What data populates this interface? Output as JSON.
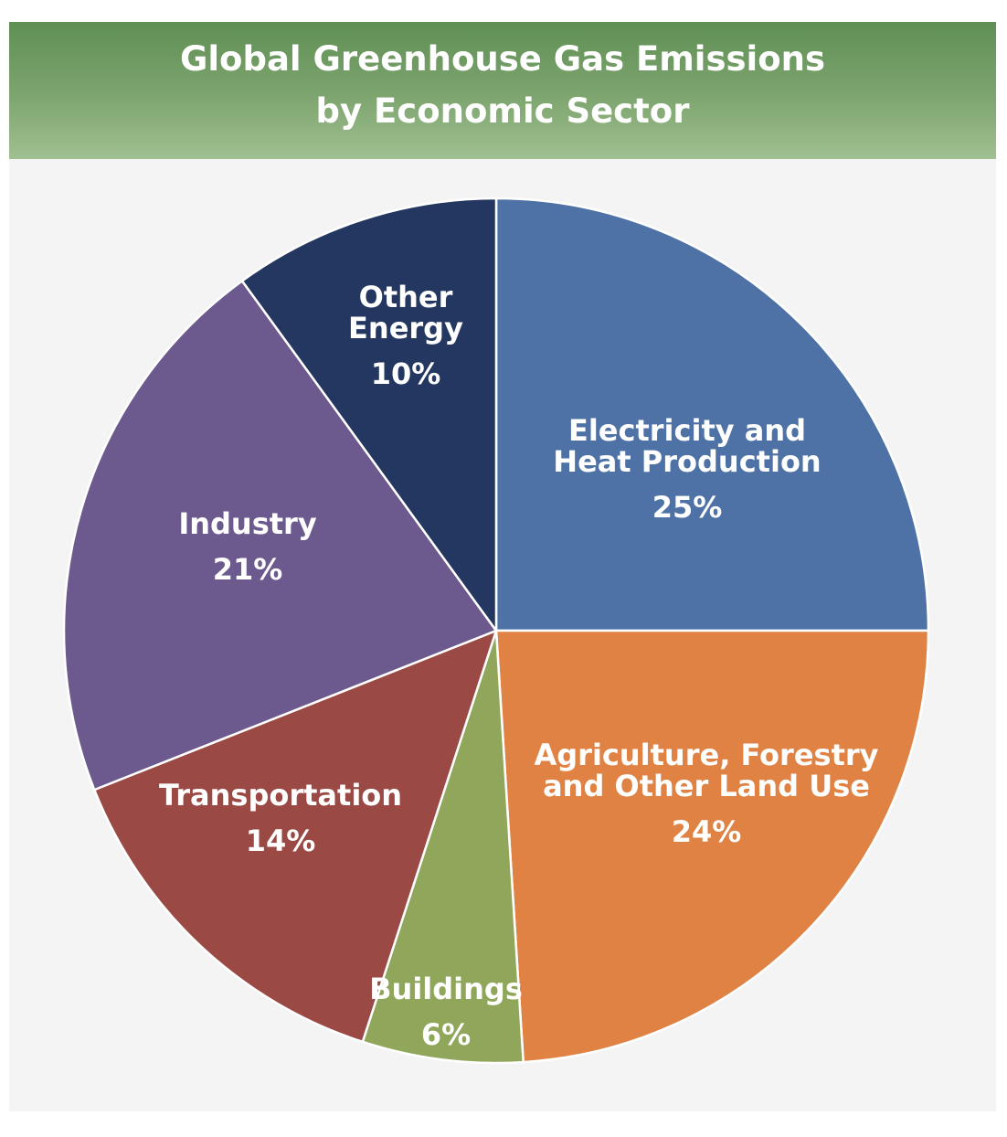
{
  "chart_data": {
    "type": "pie",
    "title_lines": [
      "Global Greenhouse Gas Emissions",
      "by Economic Sector"
    ],
    "slices": [
      {
        "label_lines": [
          "Electricity and",
          "Heat Production"
        ],
        "percent_text": "25%",
        "value": 25,
        "color": "#4e72a6"
      },
      {
        "label_lines": [
          "Agriculture, Forestry",
          "and Other Land Use"
        ],
        "percent_text": "24%",
        "value": 24,
        "color": "#df8244"
      },
      {
        "label_lines": [
          "Buildings"
        ],
        "percent_text": "6%",
        "value": 6,
        "color": "#8fa65b"
      },
      {
        "label_lines": [
          "Transportation"
        ],
        "percent_text": "14%",
        "value": 14,
        "color": "#9b4944"
      },
      {
        "label_lines": [
          "Industry"
        ],
        "percent_text": "21%",
        "value": 21,
        "color": "#6c5a8e"
      },
      {
        "label_lines": [
          "Other",
          "Energy"
        ],
        "percent_text": "10%",
        "value": 10,
        "color": "#233760"
      }
    ],
    "start": "12 o'clock",
    "direction": "clockwise",
    "legend": "none"
  }
}
